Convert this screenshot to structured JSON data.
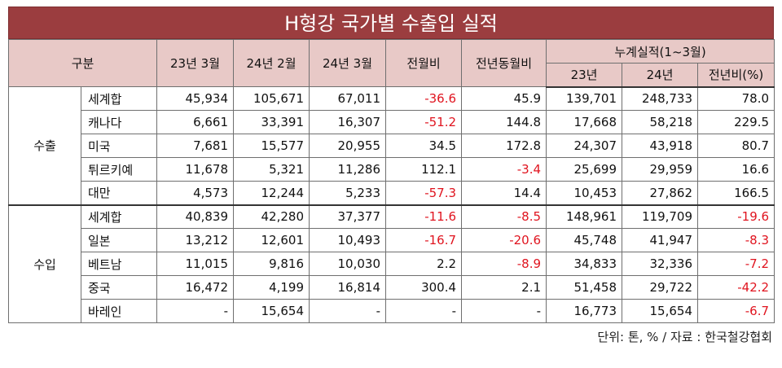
{
  "title": "H형강 국가별 수출입 실적",
  "headers": {
    "category": "구분",
    "col1": "23년 3월",
    "col2": "24년 2월",
    "col3": "24년 3월",
    "col4": "전월비",
    "col5": "전년동월비",
    "cumulative": "누계실적(1~3월)",
    "cum1": "23년",
    "cum2": "24년",
    "cum3": "전년비(%)"
  },
  "groups": [
    {
      "label": "수출",
      "rows": [
        {
          "name": "세계합",
          "v": [
            "45,934",
            "105,671",
            "67,011",
            "-36.6",
            "45.9",
            "139,701",
            "248,733",
            "78.0"
          ]
        },
        {
          "name": "캐나다",
          "v": [
            "6,661",
            "33,391",
            "16,307",
            "-51.2",
            "144.8",
            "17,668",
            "58,218",
            "229.5"
          ]
        },
        {
          "name": "미국",
          "v": [
            "7,681",
            "15,577",
            "20,955",
            "34.5",
            "172.8",
            "24,307",
            "43,918",
            "80.7"
          ]
        },
        {
          "name": "튀르키예",
          "v": [
            "11,678",
            "5,321",
            "11,286",
            "112.1",
            "-3.4",
            "25,699",
            "29,959",
            "16.6"
          ]
        },
        {
          "name": "대만",
          "v": [
            "4,573",
            "12,244",
            "5,233",
            "-57.3",
            "14.4",
            "10,453",
            "27,862",
            "166.5"
          ]
        }
      ]
    },
    {
      "label": "수입",
      "rows": [
        {
          "name": "세계합",
          "v": [
            "40,839",
            "42,280",
            "37,377",
            "-11.6",
            "-8.5",
            "148,961",
            "119,709",
            "-19.6"
          ]
        },
        {
          "name": "일본",
          "v": [
            "13,212",
            "12,601",
            "10,493",
            "-16.7",
            "-20.6",
            "45,748",
            "41,947",
            "-8.3"
          ]
        },
        {
          "name": "베트남",
          "v": [
            "11,015",
            "9,816",
            "10,030",
            "2.2",
            "-8.9",
            "34,833",
            "32,336",
            "-7.2"
          ]
        },
        {
          "name": "중국",
          "v": [
            "16,472",
            "4,199",
            "16,814",
            "300.4",
            "2.1",
            "51,458",
            "29,722",
            "-42.2"
          ]
        },
        {
          "name": "바레인",
          "v": [
            "-",
            "15,654",
            "-",
            "-",
            "-",
            "16,773",
            "15,654",
            "-6.7"
          ]
        }
      ]
    }
  ],
  "source": "단위: 톤, % / 자료 : 한국철강협회",
  "colors": {
    "title_bg": "#9b3d3f",
    "header_bg": "#e8c9c7",
    "negative": "#e0141f"
  }
}
